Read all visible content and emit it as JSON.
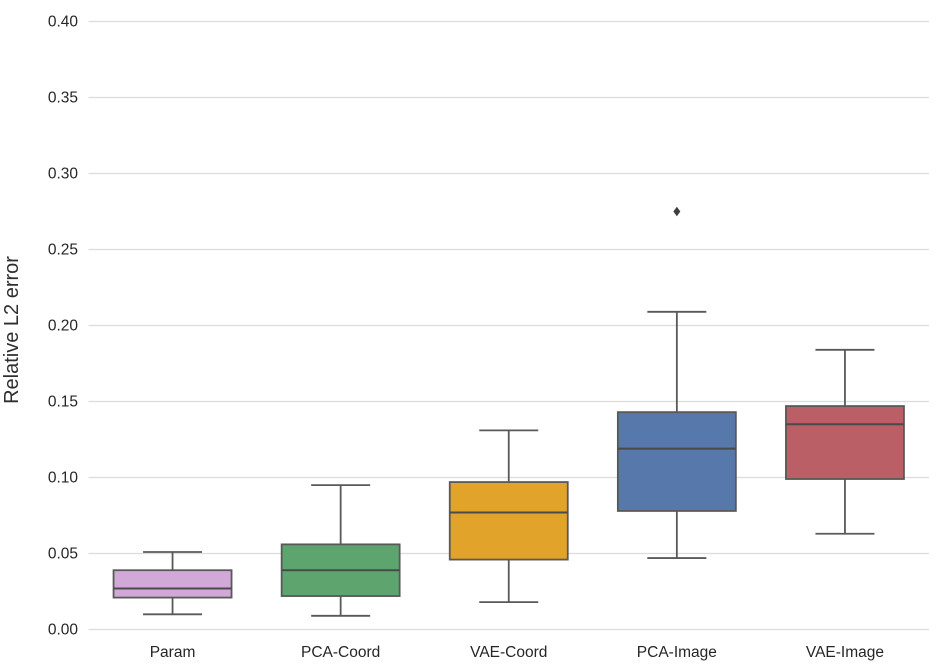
{
  "chart_data": {
    "type": "boxplot",
    "title": "",
    "xlabel": "",
    "ylabel": "Relative L2 error",
    "ylim": [
      0.0,
      0.4
    ],
    "yticks": [
      0.0,
      0.05,
      0.1,
      0.15,
      0.2,
      0.25,
      0.3,
      0.35,
      0.4
    ],
    "ytick_decimals": 2,
    "grid": "horizontal",
    "legend": "none",
    "categories": [
      "Param",
      "PCA-Coord",
      "VAE-Coord",
      "PCA-Image",
      "VAE-Image"
    ],
    "boxes": [
      {
        "category": "Param",
        "color": "#d2a8d8",
        "whisker_low": 0.01,
        "q1": 0.021,
        "median": 0.027,
        "q3": 0.039,
        "whisker_high": 0.051,
        "outliers": []
      },
      {
        "category": "PCA-Coord",
        "color": "#5ea46f",
        "whisker_low": 0.009,
        "q1": 0.022,
        "median": 0.039,
        "q3": 0.056,
        "whisker_high": 0.095,
        "outliers": []
      },
      {
        "category": "VAE-Coord",
        "color": "#e2a32a",
        "whisker_low": 0.018,
        "q1": 0.046,
        "median": 0.077,
        "q3": 0.097,
        "whisker_high": 0.131,
        "outliers": []
      },
      {
        "category": "PCA-Image",
        "color": "#5778ab",
        "whisker_low": 0.047,
        "q1": 0.078,
        "median": 0.119,
        "q3": 0.143,
        "whisker_high": 0.209,
        "outliers": [
          0.275
        ]
      },
      {
        "category": "VAE-Image",
        "color": "#bb5f66",
        "whisker_low": 0.063,
        "q1": 0.099,
        "median": 0.135,
        "q3": 0.147,
        "whisker_high": 0.184,
        "outliers": []
      }
    ],
    "colors": {
      "box_edge": "#595959",
      "whisker": "#595959",
      "median": "#4a4a4a",
      "outlier": "#3f3f3f",
      "grid": "#dcdcdc",
      "tick_text": "#262626",
      "background": "#ffffff"
    }
  }
}
